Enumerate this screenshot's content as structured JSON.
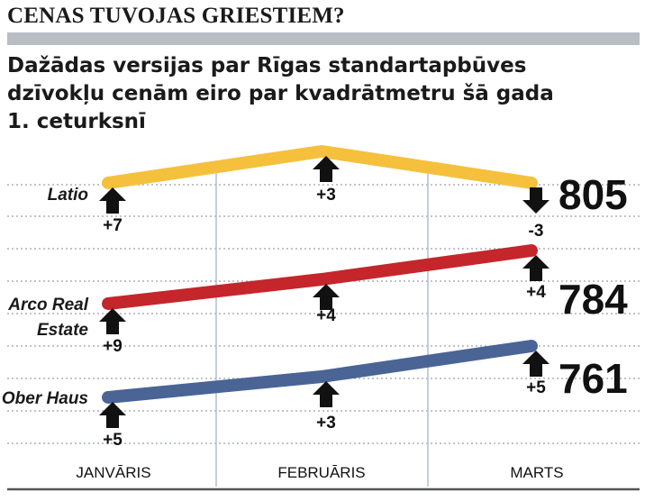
{
  "header": {
    "kicker": "CENAS TUVOJAS GRIESTIEM?",
    "title_lines": [
      "Dažādas versijas par Rīgas standartapbūves",
      "dzīvokļu cenām eiro par kvadrātmetru šā gada",
      "1. ceturksnī"
    ]
  },
  "chart_data": {
    "type": "line",
    "categories": [
      "JANVĀRIS",
      "FEBRUĀRIS",
      "MARTS"
    ],
    "series": [
      {
        "name": "Latio",
        "label_lines": [
          "Latio"
        ],
        "color": "#f5c03c",
        "changes": [
          "+7",
          "+3",
          "-3"
        ],
        "directions": [
          "up",
          "up",
          "down"
        ],
        "end_value": 805
      },
      {
        "name": "Arco Real Estate",
        "label_lines": [
          "Arco Real",
          "Estate"
        ],
        "color": "#c4262c",
        "changes": [
          "+9",
          "+4",
          "+4"
        ],
        "directions": [
          "up",
          "up",
          "up"
        ],
        "end_value": 784
      },
      {
        "name": "Ober Haus",
        "label_lines": [
          "Ober Haus"
        ],
        "color": "#4a6496",
        "changes": [
          "+5",
          "+3",
          "+5"
        ],
        "directions": [
          "up",
          "up",
          "up"
        ],
        "end_value": 761
      }
    ]
  }
}
